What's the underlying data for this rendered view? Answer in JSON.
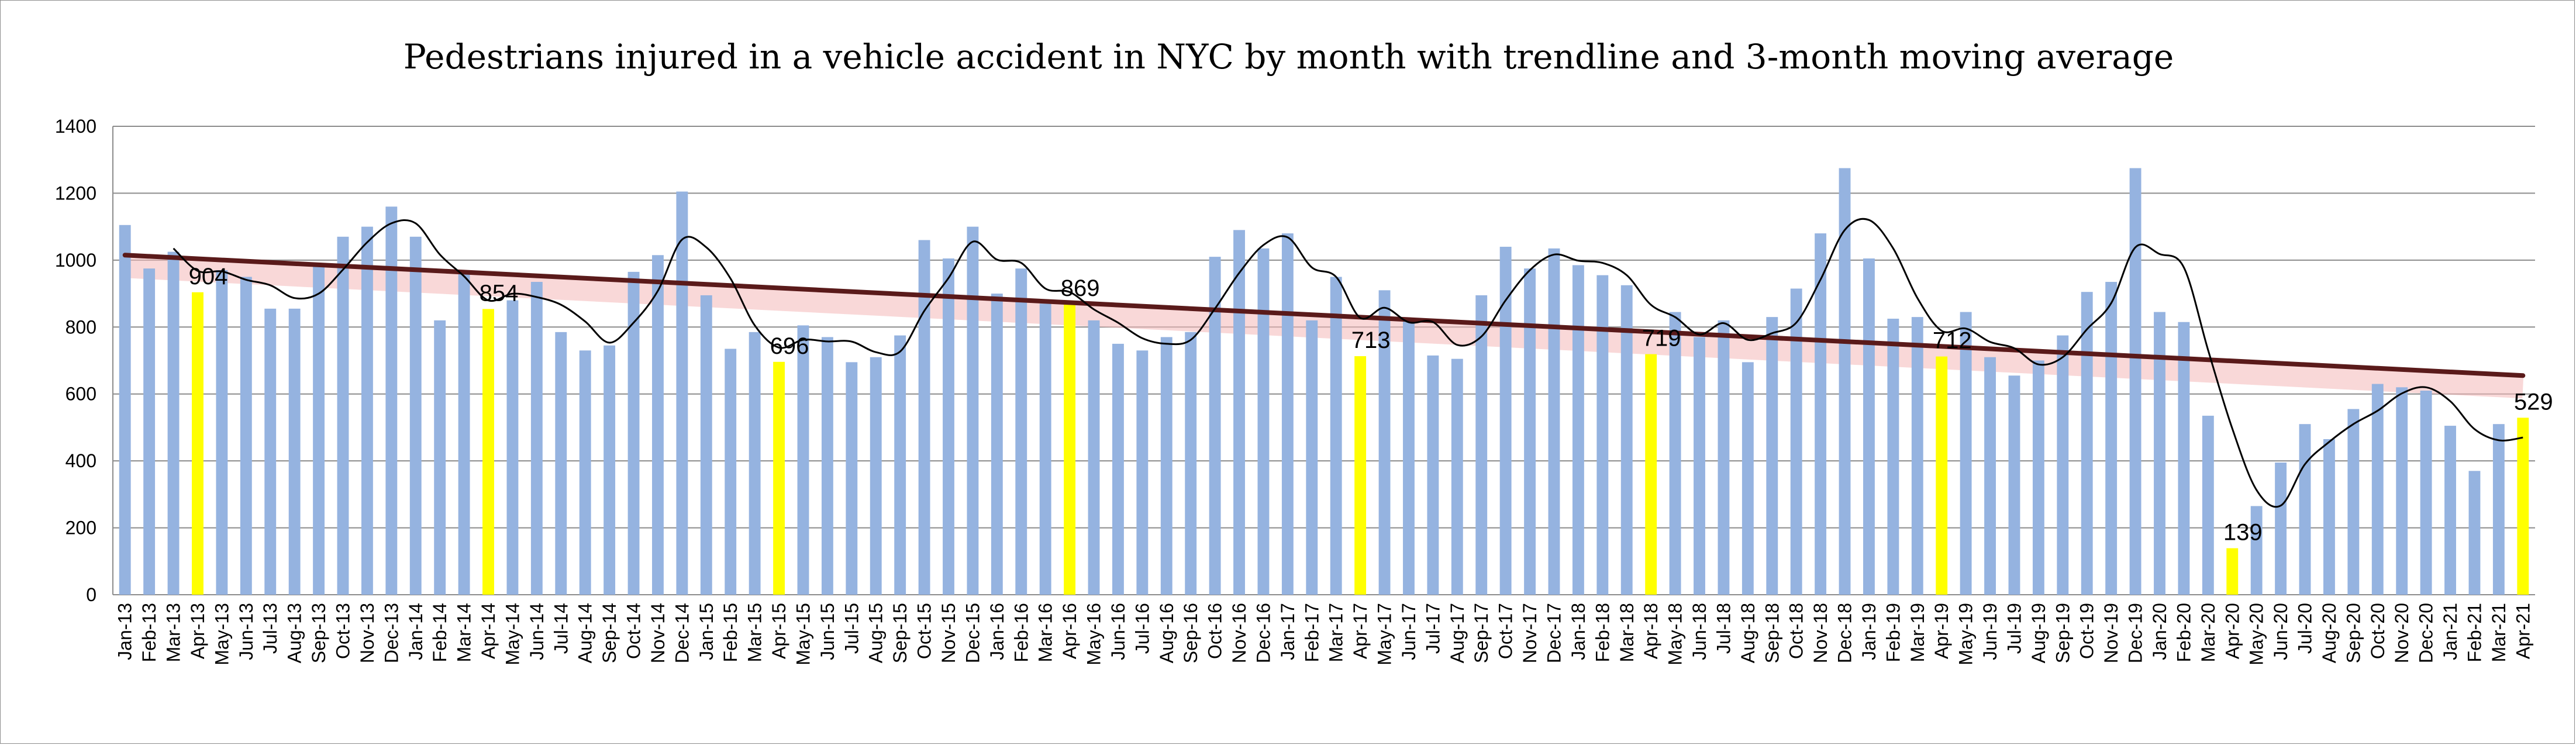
{
  "chart_data": {
    "type": "bar",
    "title": "Pedestrians injured in a vehicle accident in NYC by month with trendline and 3-month moving average",
    "xlabel": "",
    "ylabel": "",
    "ylim": [
      0,
      1400
    ],
    "yticks": [
      0,
      200,
      400,
      600,
      800,
      1000,
      1200,
      1400
    ],
    "grid": true,
    "legend": "none",
    "colors": {
      "bar": "#95B3E0",
      "highlight": "#FFFF00",
      "moving_average": "#000000",
      "trendline": "#5A1A1A",
      "trend_glow": "#F4B8B8",
      "gridline": "#8C8C8C"
    },
    "categories": [
      "Jan-13",
      "Feb-13",
      "Mar-13",
      "Apr-13",
      "May-13",
      "Jun-13",
      "Jul-13",
      "Aug-13",
      "Sep-13",
      "Oct-13",
      "Nov-13",
      "Dec-13",
      "Jan-14",
      "Feb-14",
      "Mar-14",
      "Apr-14",
      "May-14",
      "Jun-14",
      "Jul-14",
      "Aug-14",
      "Sep-14",
      "Oct-14",
      "Nov-14",
      "Dec-14",
      "Jan-15",
      "Feb-15",
      "Mar-15",
      "Apr-15",
      "May-15",
      "Jun-15",
      "Jul-15",
      "Aug-15",
      "Sep-15",
      "Oct-15",
      "Nov-15",
      "Dec-15",
      "Jan-16",
      "Feb-16",
      "Mar-16",
      "Apr-16",
      "May-16",
      "Jun-16",
      "Jul-16",
      "Aug-16",
      "Sep-16",
      "Oct-16",
      "Nov-16",
      "Dec-16",
      "Jan-17",
      "Feb-17",
      "Mar-17",
      "Apr-17",
      "May-17",
      "Jun-17",
      "Jul-17",
      "Aug-17",
      "Sep-17",
      "Oct-17",
      "Nov-17",
      "Dec-17",
      "Jan-18",
      "Feb-18",
      "Mar-18",
      "Apr-18",
      "May-18",
      "Jun-18",
      "Jul-18",
      "Aug-18",
      "Sep-18",
      "Oct-18",
      "Nov-18",
      "Dec-18",
      "Jan-19",
      "Feb-19",
      "Mar-19",
      "Apr-19",
      "May-19",
      "Jun-19",
      "Jul-19",
      "Aug-19",
      "Sep-19",
      "Oct-19",
      "Nov-19",
      "Dec-19",
      "Jan-20",
      "Feb-20",
      "Mar-20",
      "Apr-20",
      "May-20",
      "Jun-20",
      "Jul-20",
      "Aug-20",
      "Sep-20",
      "Oct-20",
      "Nov-20",
      "Dec-20",
      "Jan-21",
      "Feb-21",
      "Mar-21",
      "Apr-21"
    ],
    "values": [
      1105,
      975,
      1025,
      904,
      970,
      950,
      855,
      855,
      990,
      1070,
      1100,
      1160,
      1070,
      820,
      965,
      854,
      880,
      935,
      785,
      730,
      745,
      965,
      1015,
      1205,
      895,
      735,
      785,
      696,
      805,
      770,
      695,
      710,
      775,
      1060,
      1005,
      1100,
      900,
      975,
      870,
      869,
      820,
      750,
      730,
      770,
      785,
      1010,
      1090,
      1035,
      1080,
      820,
      950,
      713,
      910,
      820,
      715,
      705,
      895,
      1040,
      975,
      1035,
      985,
      955,
      925,
      719,
      845,
      770,
      820,
      695,
      830,
      915,
      1080,
      1275,
      1005,
      825,
      830,
      712,
      845,
      710,
      655,
      700,
      775,
      905,
      935,
      1275,
      845,
      815,
      535,
      139,
      265,
      395,
      510,
      465,
      555,
      630,
      620,
      610,
      505,
      370,
      510,
      529
    ],
    "highlighted": [
      "Apr-13",
      "Apr-14",
      "Apr-15",
      "Apr-16",
      "Apr-17",
      "Apr-18",
      "Apr-19",
      "Apr-20",
      "Apr-21"
    ],
    "data_labels": [
      {
        "category": "Apr-13",
        "text": "904"
      },
      {
        "category": "Apr-14",
        "text": "854"
      },
      {
        "category": "Apr-15",
        "text": "696"
      },
      {
        "category": "Apr-16",
        "text": "869"
      },
      {
        "category": "Apr-17",
        "text": "713"
      },
      {
        "category": "Apr-18",
        "text": "719"
      },
      {
        "category": "Apr-19",
        "text": "712"
      },
      {
        "category": "Apr-20",
        "text": "139"
      },
      {
        "category": "Apr-21",
        "text": "529"
      }
    ],
    "moving_average_window": 3,
    "trendline": {
      "type": "linear",
      "start": 1015,
      "end": 655
    }
  }
}
